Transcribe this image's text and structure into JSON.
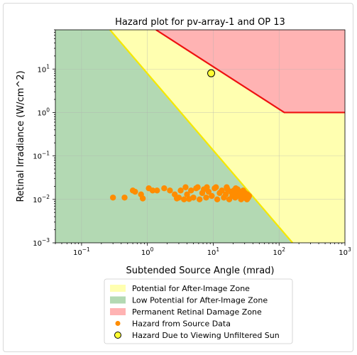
{
  "chart_data": {
    "type": "scatter",
    "title": "Hazard plot for pv-array-1 and OP 13",
    "xlabel": "Subtended Source Angle (mrad)",
    "ylabel": "Retinal Irradiance (W/cm^2)",
    "x_scale": "log",
    "y_scale": "log",
    "xlim": [
      0.04,
      1000
    ],
    "ylim": [
      0.001,
      80
    ],
    "x_ticks": [
      {
        "value": 0.1,
        "base": "10",
        "exp": "−1"
      },
      {
        "value": 1,
        "base": "10",
        "exp": "0"
      },
      {
        "value": 10,
        "base": "10",
        "exp": "1"
      },
      {
        "value": 100,
        "base": "10",
        "exp": "2"
      },
      {
        "value": 1000,
        "base": "10",
        "exp": "3"
      }
    ],
    "y_ticks": [
      {
        "value": 0.001,
        "base": "10",
        "exp": "−3"
      },
      {
        "value": 0.01,
        "base": "10",
        "exp": "−2"
      },
      {
        "value": 0.1,
        "base": "10",
        "exp": "−1"
      },
      {
        "value": 1,
        "base": "10",
        "exp": "0"
      },
      {
        "value": 10,
        "base": "10",
        "exp": "1"
      }
    ],
    "grid": true,
    "legend_position": "below plot",
    "zones": {
      "after_image": {
        "color": "#ffffb0"
      },
      "low_potential": {
        "color": "#b3d9b3",
        "boundary": [
          [
            0.27,
            80
          ],
          [
            160,
            0.001
          ]
        ],
        "boundary_color": "#f5e800"
      },
      "permanent_damage": {
        "color": "#ffb3b3",
        "boundary": [
          [
            1.35,
            80
          ],
          [
            120,
            1.0
          ],
          [
            1000,
            1.0
          ]
        ],
        "boundary_color": "#ee1111"
      }
    },
    "series": [
      {
        "name": "Hazard from Source Data",
        "marker": "circle",
        "color": "#ff8c00",
        "points": [
          [
            0.3,
            0.011
          ],
          [
            0.45,
            0.011
          ],
          [
            0.6,
            0.016
          ],
          [
            0.65,
            0.015
          ],
          [
            0.8,
            0.013
          ],
          [
            0.85,
            0.0105
          ],
          [
            1.05,
            0.018
          ],
          [
            1.2,
            0.016
          ],
          [
            1.4,
            0.016
          ],
          [
            1.8,
            0.018
          ],
          [
            2.2,
            0.016
          ],
          [
            2.6,
            0.013
          ],
          [
            3.0,
            0.011
          ],
          [
            3.2,
            0.016
          ],
          [
            3.6,
            0.01
          ],
          [
            4.0,
            0.013
          ],
          [
            4.6,
            0.016
          ],
          [
            5.0,
            0.011
          ],
          [
            5.5,
            0.018
          ],
          [
            6.2,
            0.01
          ],
          [
            6.8,
            0.014
          ],
          [
            7.2,
            0.017
          ],
          [
            7.8,
            0.011
          ],
          [
            8.5,
            0.015
          ],
          [
            9.5,
            0.012
          ],
          [
            10.5,
            0.018
          ],
          [
            11.5,
            0.01
          ],
          [
            12.5,
            0.014
          ],
          [
            13.5,
            0.016
          ],
          [
            14.5,
            0.011
          ],
          [
            15.5,
            0.013
          ],
          [
            16.5,
            0.017
          ],
          [
            17.5,
            0.01
          ],
          [
            18.5,
            0.015
          ],
          [
            19.5,
            0.012
          ],
          [
            20.5,
            0.016
          ],
          [
            21.5,
            0.011
          ],
          [
            22.5,
            0.014
          ],
          [
            23.5,
            0.017
          ],
          [
            24.5,
            0.012
          ],
          [
            25.5,
            0.015
          ],
          [
            26.5,
            0.01
          ],
          [
            27.5,
            0.013
          ],
          [
            28.5,
            0.016
          ],
          [
            29.5,
            0.011
          ],
          [
            30.5,
            0.014
          ],
          [
            31.5,
            0.012
          ],
          [
            32.5,
            0.01
          ],
          [
            33.0,
            0.013
          ],
          [
            34.0,
            0.011
          ],
          [
            34.5,
            0.0115
          ],
          [
            35.0,
            0.012
          ],
          [
            3.8,
            0.019
          ],
          [
            5.8,
            0.019
          ],
          [
            8.0,
            0.019
          ],
          [
            11.0,
            0.019
          ],
          [
            16.0,
            0.019
          ],
          [
            22.0,
            0.018
          ],
          [
            2.8,
            0.0105
          ],
          [
            4.3,
            0.0102
          ]
        ]
      },
      {
        "name": "Hazard Due to Viewing Unfiltered Sun",
        "marker": "circle",
        "color": "#ffff33",
        "edge": "#000000",
        "points": [
          [
            9.3,
            8.0
          ]
        ]
      }
    ],
    "legend": [
      {
        "label": "Potential for After-Image Zone",
        "kind": "patch",
        "color": "#ffffb0"
      },
      {
        "label": "Low Potential for After-Image Zone",
        "kind": "patch",
        "color": "#b3d9b3"
      },
      {
        "label": "Permanent Retinal Damage Zone",
        "kind": "patch",
        "color": "#ffb3b3"
      },
      {
        "label": "Hazard from Source Data",
        "kind": "marker",
        "color": "#ff8c00"
      },
      {
        "label": "Hazard Due to Viewing Unfiltered Sun",
        "kind": "marker",
        "color": "#ffff33",
        "edge": "#000000"
      }
    ]
  }
}
